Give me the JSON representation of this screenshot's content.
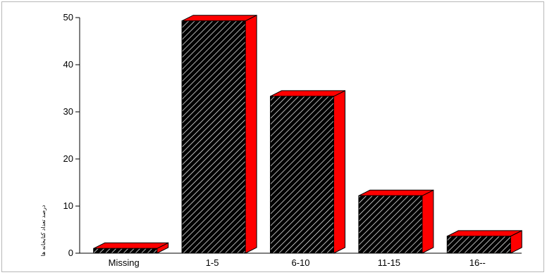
{
  "chart_data": {
    "type": "bar",
    "style": "3d",
    "categories": [
      "Missing",
      "1-5",
      "6-10",
      "11-15",
      "16--"
    ],
    "values": [
      1.0,
      49.3,
      33.3,
      12.2,
      3.6
    ],
    "ylim": [
      0,
      50
    ],
    "yticks": [
      "0",
      "10",
      "20",
      "30",
      "40",
      "50"
    ],
    "ylabel": "درصد تعداد کتابخانه ها",
    "xlabel": "",
    "grid": false,
    "legend": "none",
    "colors": {
      "bar_front": "#000000",
      "bar_hatch": "#ffffff",
      "bar_top": "#ff0000",
      "bar_side": "#ff0000",
      "axis": "#000000"
    }
  }
}
